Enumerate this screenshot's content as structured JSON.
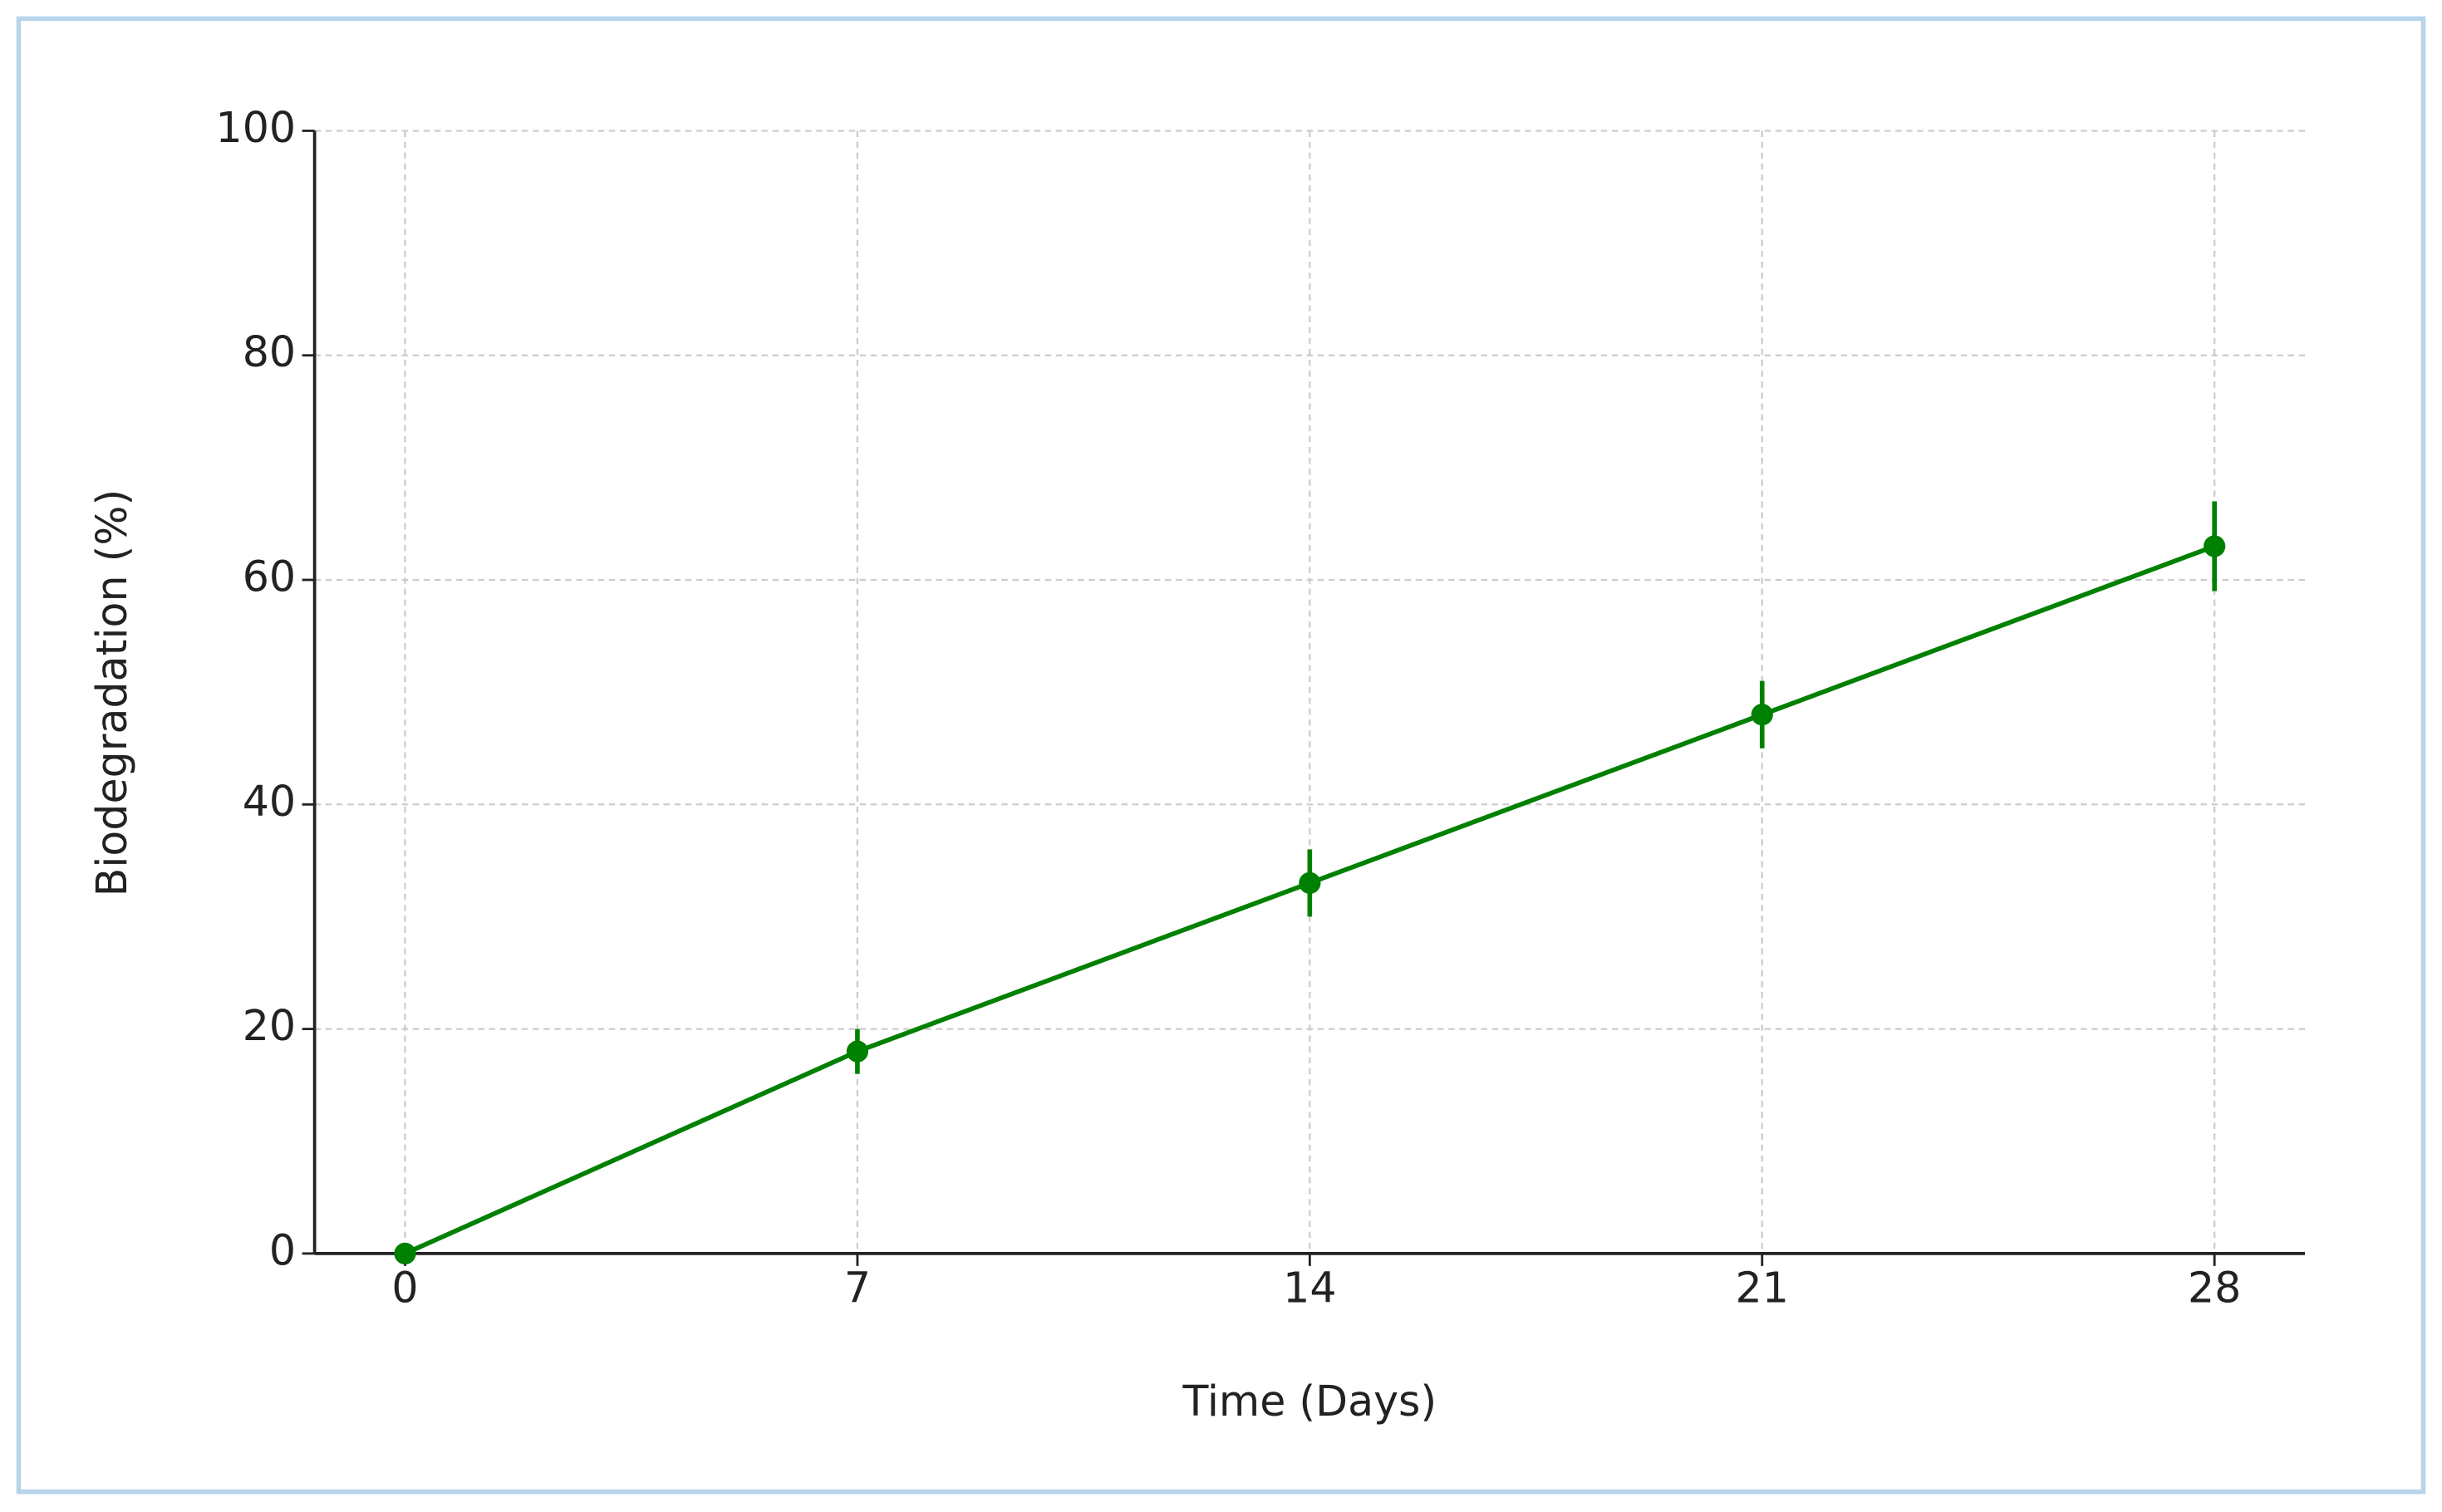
{
  "chart_data": {
    "type": "line",
    "xlabel": "Time (Days)",
    "ylabel": "Biodegradation (%)",
    "x": [
      0,
      7,
      14,
      21,
      28
    ],
    "series": [
      {
        "color": "#008000",
        "values": [
          0,
          18,
          33,
          48,
          63
        ],
        "errors": [
          0,
          2,
          3,
          3,
          4
        ]
      }
    ],
    "xlim": [
      -1.4,
      29.4
    ],
    "xticks": [
      0,
      7,
      14,
      21,
      28
    ],
    "ylim": [
      0,
      100
    ],
    "yticks": [
      0,
      20,
      40,
      60,
      80,
      100
    ],
    "grid": true
  }
}
